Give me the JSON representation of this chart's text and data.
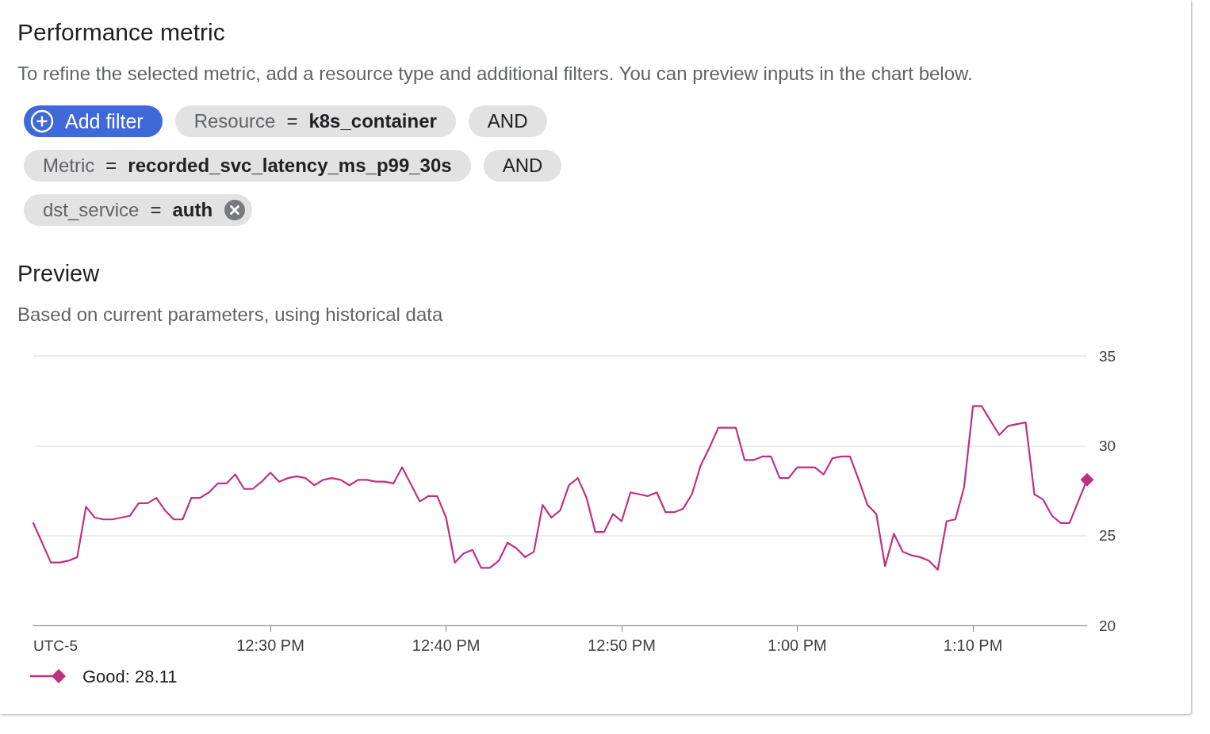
{
  "chart_data": {
    "type": "line",
    "title": "Preview",
    "subtitle": "Based on current parameters, using historical data",
    "xlabel": "UTC-5",
    "annotations": [
      "Performance metric",
      "To refine the selected metric, add a resource type and additional filters. You can preview inputs in the chart below.",
      "Add filter",
      "Resource = k8s_container",
      "AND",
      "Metric = recorded_svc_latency_ms_p99_30s",
      "AND",
      "dst_service = auth"
    ],
    "x": [
      12.275,
      12.2917,
      12.3,
      12.3083,
      12.3167,
      12.325,
      12.3333,
      12.3417,
      12.35,
      12.3583,
      12.3667,
      12.375,
      12.3833,
      12.3917,
      12.4,
      12.4083,
      12.4167,
      12.425,
      12.4333,
      12.4417,
      12.45,
      12.4583,
      12.4667,
      12.475,
      12.4833,
      12.4917,
      12.5,
      12.5083,
      12.5167,
      12.525,
      12.5333,
      12.5417,
      12.55,
      12.5583,
      12.5667,
      12.575,
      12.5833,
      12.5917,
      12.6,
      12.6083,
      12.6167,
      12.625,
      12.6417,
      12.65,
      12.6583,
      12.6667,
      12.675,
      12.6833,
      12.6917,
      12.7,
      12.7083,
      12.7167,
      12.725,
      12.7333,
      12.7417,
      12.75,
      12.7583,
      12.7667,
      12.775,
      12.7833,
      12.7917,
      12.8,
      12.8083,
      12.8167,
      12.825,
      12.8333,
      12.8417,
      12.85,
      12.8583,
      12.8667,
      12.875,
      12.8833,
      12.8917,
      12.9,
      12.9083,
      12.9167,
      12.925,
      12.9333,
      12.9417,
      12.95,
      12.9583,
      12.9667,
      12.975,
      12.9833,
      12.9917,
      13,
      13.0083,
      13.0167,
      13.025,
      13.0333,
      13.0417,
      13.05,
      13.0583,
      13.0667,
      13.075,
      13.0833,
      13.0917,
      13.1,
      13.1083,
      13.1167,
      13.125,
      13.1333,
      13.1417,
      13.15,
      13.1583,
      13.1667,
      13.175,
      13.1833,
      13.1917,
      13.2,
      13.2083,
      13.2167,
      13.225,
      13.2333,
      13.2417,
      13.25,
      13.2583,
      13.275
    ],
    "series": [
      {
        "name": "Good: 28.11",
        "color": "#c0307f",
        "values": [
          25.7,
          23.5,
          23.5,
          23.6,
          23.8,
          26.6,
          26.0,
          25.9,
          25.9,
          26.0,
          26.1,
          26.8,
          26.8,
          27.1,
          26.4,
          25.9,
          25.9,
          27.1,
          27.1,
          27.4,
          27.9,
          27.9,
          28.4,
          27.6,
          27.6,
          28.0,
          28.5,
          28.0,
          28.2,
          28.3,
          28.2,
          27.8,
          28.1,
          28.2,
          28.1,
          27.8,
          28.1,
          28.1,
          28.0,
          28.0,
          27.9,
          28.8,
          26.9,
          27.2,
          27.2,
          26.0,
          23.5,
          24.0,
          24.2,
          23.2,
          23.2,
          23.6,
          24.6,
          24.3,
          23.8,
          24.1,
          26.7,
          26.0,
          26.4,
          27.8,
          28.2,
          27.1,
          25.2,
          25.2,
          26.2,
          25.8,
          27.4,
          27.3,
          27.2,
          27.4,
          26.3,
          26.3,
          26.5,
          27.3,
          28.9,
          29.9,
          31.0,
          31.0,
          31.0,
          29.2,
          29.2,
          29.4,
          29.4,
          28.2,
          28.2,
          28.8,
          28.8,
          28.8,
          28.4,
          29.3,
          29.4,
          29.4,
          28.1,
          26.7,
          26.2,
          23.3,
          25.1,
          24.1,
          23.9,
          23.8,
          23.6,
          23.1,
          25.8,
          25.9,
          27.7,
          32.2,
          32.2,
          31.4,
          30.6,
          31.1,
          31.2,
          31.3,
          27.3,
          27.0,
          26.1,
          25.7,
          25.7,
          28.11
        ]
      },
      {
        "type": "scatter",
        "color": "#c0307f",
        "marker": "diamond",
        "x": [
          13.275
        ],
        "values": [
          28.11
        ]
      }
    ],
    "xlim": [
      12.275,
      13.275
    ],
    "xticks": [
      {
        "value": 12.5,
        "label": "12:30 PM"
      },
      {
        "value": 12.6667,
        "label": "12:40 PM"
      },
      {
        "value": 12.8333,
        "label": "12:50 PM"
      },
      {
        "value": 13,
        "label": "1:00 PM"
      },
      {
        "value": 13.1667,
        "label": "1:10 PM"
      }
    ],
    "ylim": [
      20,
      35
    ],
    "yticks": [
      20,
      25,
      30,
      35
    ],
    "grid": "y",
    "legend": "bottom left",
    "line_style": "solid"
  }
}
